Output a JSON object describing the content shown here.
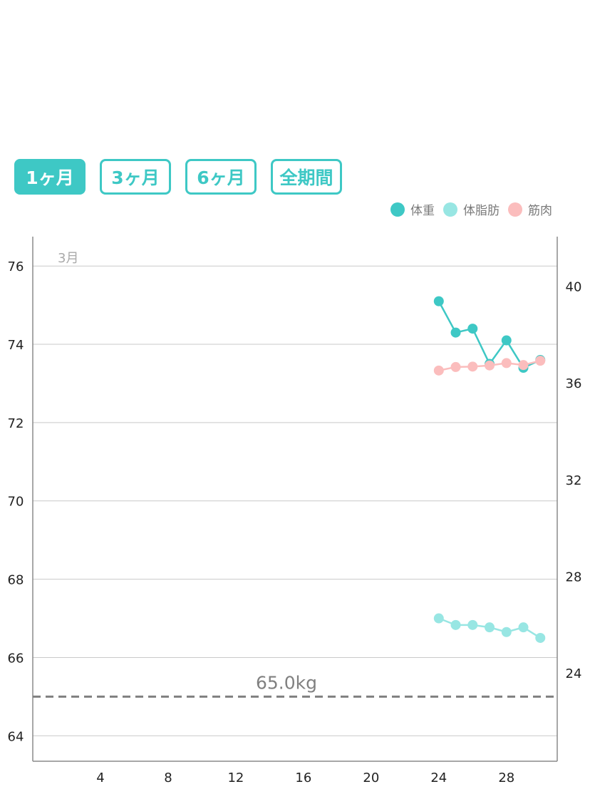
{
  "tabs": [
    {
      "label": "1ヶ月",
      "active": true
    },
    {
      "label": "3ヶ月",
      "active": false
    },
    {
      "label": "6ヶ月",
      "active": false
    },
    {
      "label": "全期間",
      "active": false
    }
  ],
  "colors": {
    "accent": "#3ec8c5",
    "weight": "#3ec8c5",
    "body_fat": "#98e6e3",
    "muscle": "#fbbdbd",
    "grid": "#c9c9c9",
    "target_line": "#808080"
  },
  "legend": [
    {
      "name": "体重",
      "color": "#3ec8c5"
    },
    {
      "name": "体脂肪",
      "color": "#98e6e3"
    },
    {
      "name": "筋肉",
      "color": "#fbbdbd"
    }
  ],
  "chart_data": {
    "type": "line",
    "month_label": "3月",
    "x": [
      24,
      25,
      26,
      27,
      28,
      29,
      30
    ],
    "x_ticks": [
      "4",
      "8",
      "12",
      "16",
      "20",
      "24",
      "28"
    ],
    "xlim": [
      0,
      31
    ],
    "left_axis": {
      "ticks": [
        "64",
        "66",
        "68",
        "70",
        "72",
        "74",
        "76"
      ],
      "lim": [
        63.35,
        76.75
      ]
    },
    "right_axis": {
      "ticks": [
        "24",
        "28",
        "32",
        "36",
        "40"
      ],
      "lim": [
        20.35,
        42.05
      ]
    },
    "series": [
      {
        "name": "体重",
        "axis": "left",
        "color": "#3ec8c5",
        "values": [
          75.1,
          74.3,
          74.4,
          73.5,
          74.1,
          73.4,
          73.6
        ]
      },
      {
        "name": "筋肉",
        "axis": "left",
        "color": "#fbbdbd",
        "values": [
          73.33,
          73.42,
          73.43,
          73.46,
          73.52,
          73.47,
          73.58
        ]
      },
      {
        "name": "体脂肪",
        "axis": "left",
        "color": "#98e6e3",
        "values": [
          67.0,
          66.83,
          66.83,
          66.77,
          66.65,
          66.77,
          66.5
        ]
      }
    ],
    "target": {
      "value": 65.0,
      "label": "65.0kg"
    },
    "grid": true,
    "legend_position": "top-right"
  }
}
